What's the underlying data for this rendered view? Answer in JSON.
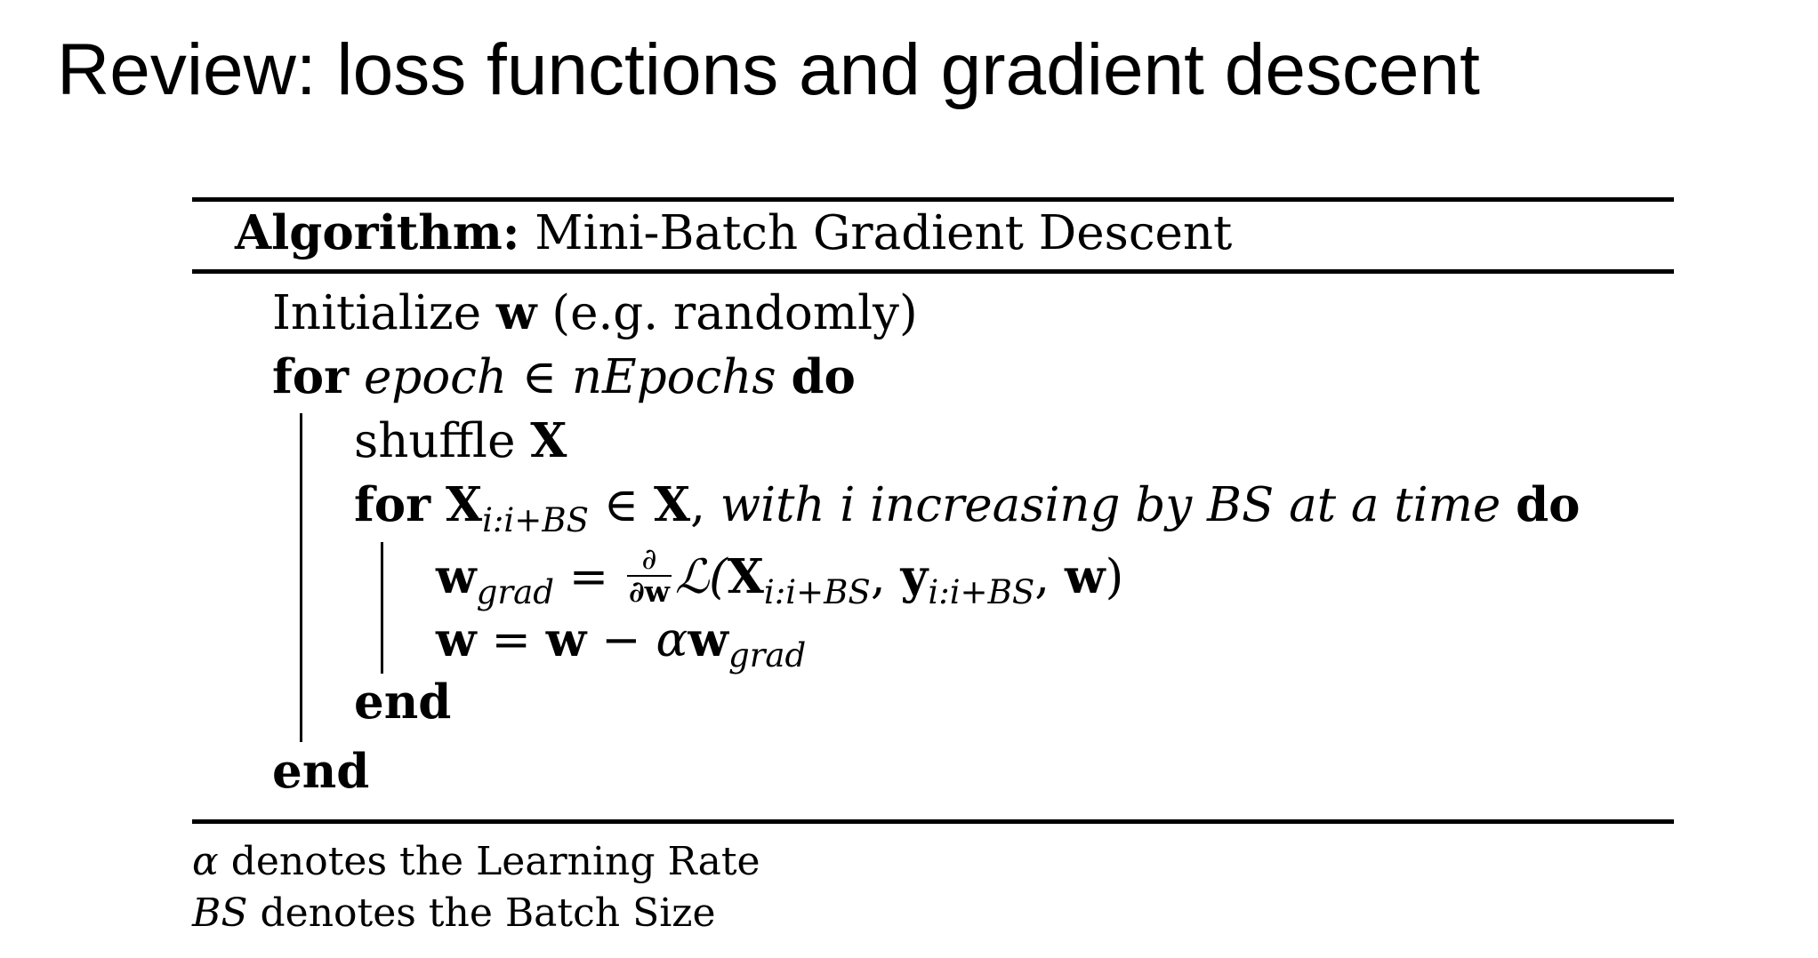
{
  "slide": {
    "title": "Review: loss functions and gradient descent"
  },
  "algorithm": {
    "heading_label": "Algorithm:",
    "heading_name": "Mini-Batch Gradient Descent",
    "init": {
      "word": "Initialize",
      "var": "w",
      "rest": "(e.g. randomly)"
    },
    "outer_loop": {
      "kw_for": "for",
      "iter": "epoch",
      "elem": "∈",
      "set": "nEpochs",
      "kw_do": "do"
    },
    "shuffle": {
      "word": "shuffle",
      "var": "X"
    },
    "inner_loop": {
      "kw_for": "for",
      "var": "X",
      "sub": "i:i+BS",
      "elem": "∈",
      "set": "X",
      "comma": ",",
      "desc": "with i increasing by BS at a time",
      "kw_do": "do"
    },
    "grad_step": {
      "lhs": "w",
      "lhs_sub": "grad",
      "eq": "=",
      "frac_num": "∂",
      "frac_den": "∂w",
      "loss": "ℒ(",
      "x": "X",
      "x_sub": "i:i+BS",
      "sep1": ", ",
      "y": "y",
      "y_sub": "i:i+BS",
      "sep2": ", ",
      "w": "w",
      "close": ")"
    },
    "update_step": {
      "lhs": "w",
      "eq": "=",
      "w": "w",
      "minus": "−",
      "alpha": "α",
      "w2": "w",
      "sub": "grad"
    },
    "inner_end": "end",
    "outer_end": "end"
  },
  "notes": [
    {
      "symbol": "α",
      "text": "denotes the Learning Rate"
    },
    {
      "symbol": "BS",
      "text": "denotes the Batch Size"
    }
  ]
}
